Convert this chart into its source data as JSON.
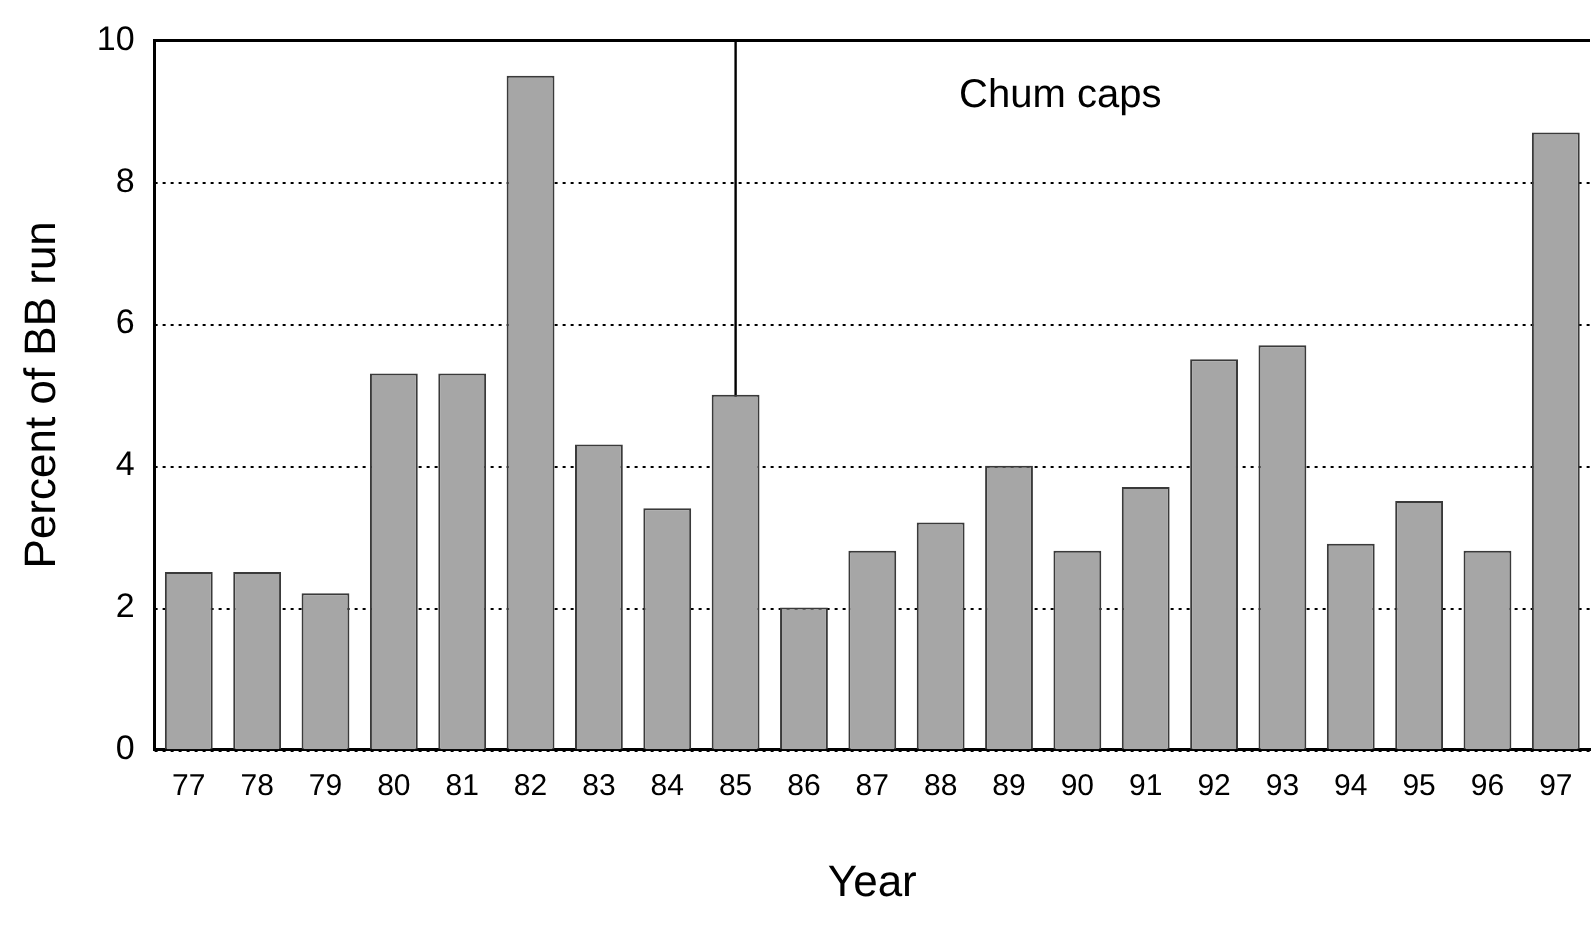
{
  "chart_data": {
    "type": "bar",
    "xlabel": "Year",
    "ylabel": "Percent of BB run",
    "categories": [
      "77",
      "78",
      "79",
      "80",
      "81",
      "82",
      "83",
      "84",
      "85",
      "86",
      "87",
      "88",
      "89",
      "90",
      "91",
      "92",
      "93",
      "94",
      "95",
      "96",
      "97"
    ],
    "values": [
      2.5,
      2.5,
      2.2,
      5.3,
      5.3,
      9.5,
      4.3,
      3.4,
      5.0,
      2.0,
      2.8,
      3.2,
      4.0,
      2.8,
      3.7,
      5.5,
      5.7,
      2.9,
      3.5,
      2.8,
      8.7
    ],
    "color": "#a6a6a6",
    "ylim": [
      0,
      10
    ],
    "yticks": [
      0,
      2,
      4,
      6,
      8,
      10
    ],
    "grid": "y",
    "legend": false,
    "ref_lines": [
      {
        "axis": "x",
        "value": "85",
        "label": "Chum caps",
        "color": "#000000"
      }
    ]
  }
}
